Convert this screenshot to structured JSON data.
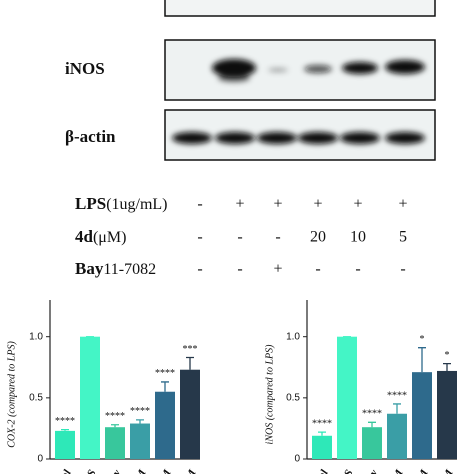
{
  "blot": {
    "bands": [
      "iNOS",
      "β-actin"
    ],
    "conditions": [
      {
        "bold": "LPS",
        "rest": "(1ug/mL)",
        "signs": [
          "-",
          "+",
          "+",
          "+",
          "+",
          "+"
        ]
      },
      {
        "bold": "4d",
        "rest": "(μM)",
        "signs": [
          "-",
          "-",
          "-",
          "20",
          "10",
          "5"
        ]
      },
      {
        "bold": "Bay",
        "rest": "11-7082",
        "signs": [
          "-",
          "-",
          "+",
          "-",
          "-",
          "-"
        ]
      }
    ]
  },
  "chart_data": [
    {
      "type": "bar",
      "y_label": "COX-2 (compared to LPS)",
      "categories": [
        "ol",
        "PS",
        "Bay",
        "M",
        "M",
        "M"
      ],
      "values": [
        0.23,
        1.0,
        0.26,
        0.29,
        0.55,
        0.73
      ],
      "errors": [
        0.01,
        0,
        0.02,
        0.03,
        0.08,
        0.1
      ],
      "annotations": [
        "****",
        null,
        "****",
        "****",
        "****",
        "***"
      ],
      "colors": [
        "#2ee8b8",
        "#44f5c6",
        "#38c79c",
        "#3a9ea6",
        "#2e6a8c",
        "#26384a"
      ],
      "ylim": [
        0,
        1.3
      ],
      "yticks": [
        0,
        0.5,
        {
          "value": 1,
          "label": "1.0"
        }
      ]
    },
    {
      "type": "bar",
      "y_label": "iNOS (compared to LPS)",
      "categories": [
        "ol",
        "PS",
        "Bay",
        "M",
        "M",
        "M"
      ],
      "values": [
        0.19,
        1.0,
        0.26,
        0.37,
        0.71,
        0.72
      ],
      "errors": [
        0.03,
        0,
        0.04,
        0.08,
        0.2,
        0.06
      ],
      "annotations": [
        "****",
        null,
        "****",
        "****",
        "*",
        "*"
      ],
      "colors": [
        "#2ee8b8",
        "#44f5c6",
        "#38c79c",
        "#3a9ea6",
        "#2e6a8c",
        "#26384a"
      ],
      "ylim": [
        0,
        1.3
      ],
      "yticks": [
        0,
        0.5,
        {
          "value": 1,
          "label": "1.0"
        }
      ]
    }
  ]
}
